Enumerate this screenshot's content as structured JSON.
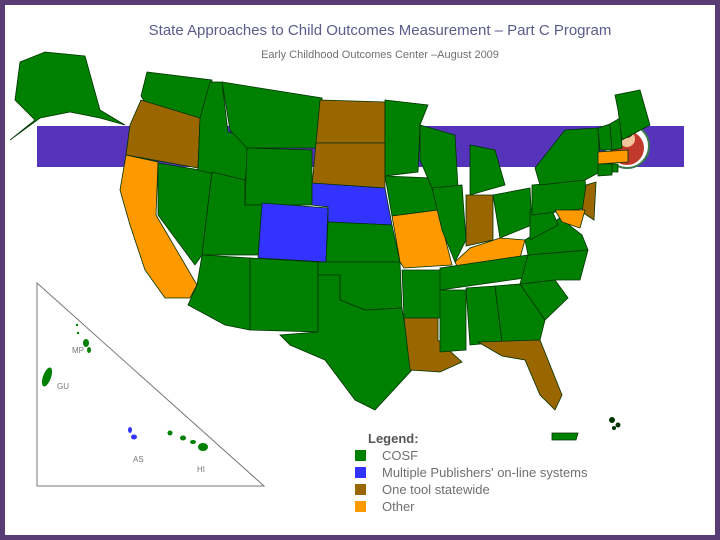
{
  "title": "State Approaches to Child Outcomes Measurement – Part C Program",
  "subtitle": "Early Childhood Outcomes Center –August  2009",
  "legend": {
    "heading": "Legend:",
    "items": [
      {
        "label": "COSF",
        "color": "#008000"
      },
      {
        "label": "Multiple Publishers' on-line systems",
        "color": "#3333ff"
      },
      {
        "label": "One tool statewide",
        "color": "#996600"
      },
      {
        "label": "Other",
        "color": "#ff9900"
      }
    ]
  },
  "territory_labels": {
    "mp": "MP",
    "gu": "GU",
    "as": "AS",
    "hi": "HI"
  },
  "colors": {
    "frame": "#5a3d75",
    "banner": "#5533bb",
    "cosf": "#008000",
    "multiple": "#3333ff",
    "onetool": "#996600",
    "other": "#ff9900"
  },
  "state_categories": {
    "cosf": [
      "AK",
      "WA",
      "ID",
      "MT",
      "WY",
      "NV",
      "UT",
      "AZ",
      "NM",
      "TX",
      "OK",
      "KS",
      "MN",
      "IA",
      "WI",
      "IL",
      "MI",
      "AR",
      "MS",
      "AL",
      "GA",
      "SC",
      "NC",
      "TN",
      "VA",
      "WV",
      "OH",
      "PA",
      "NY",
      "VT",
      "NH",
      "ME",
      "CT",
      "RI",
      "HI",
      "PR"
    ],
    "multiple": [
      "CO",
      "NE"
    ],
    "onetool": [
      "OR",
      "ND",
      "SD",
      "LA",
      "FL",
      "IN",
      "NJ"
    ],
    "other": [
      "CA",
      "MO",
      "KY",
      "MA",
      "MD"
    ]
  }
}
